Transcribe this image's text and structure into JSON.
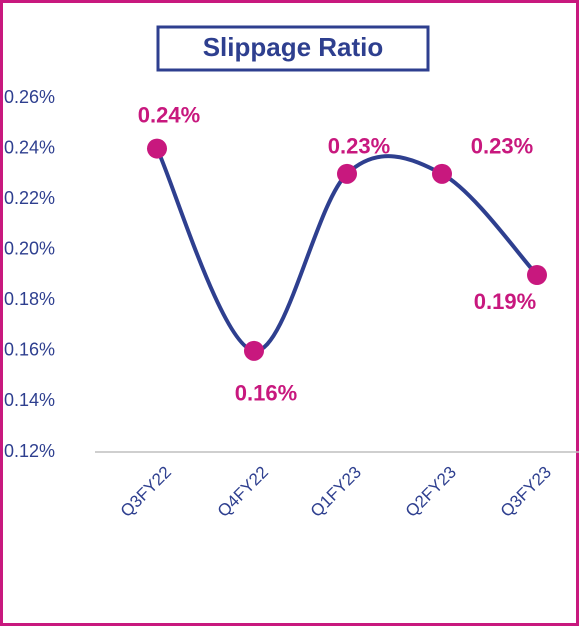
{
  "chart_data": {
    "type": "line",
    "title": "Slippage Ratio",
    "categories": [
      "Q3FY22",
      "Q4FY22",
      "Q1FY23",
      "Q2FY23",
      "Q3FY23"
    ],
    "series": [
      {
        "color": "#2e3f8f",
        "marker_color": "#c8187e",
        "values": [
          0.24,
          0.16,
          0.23,
          0.23,
          0.19
        ],
        "value_labels": [
          "0.24%",
          "0.16%",
          "0.23%",
          "0.23%",
          "0.19%"
        ]
      }
    ],
    "ylim": [
      0.12,
      0.26
    ],
    "yticks": [
      {
        "value": 0.12,
        "label": "0.12%"
      },
      {
        "value": 0.14,
        "label": "0.14%"
      },
      {
        "value": 0.16,
        "label": "0.16%"
      },
      {
        "value": 0.18,
        "label": "0.18%"
      },
      {
        "value": 0.2,
        "label": "0.20%"
      },
      {
        "value": 0.22,
        "label": "0.22%"
      },
      {
        "value": 0.24,
        "label": "0.24%"
      },
      {
        "value": 0.26,
        "label": "0.26%"
      }
    ],
    "smooth": true
  }
}
